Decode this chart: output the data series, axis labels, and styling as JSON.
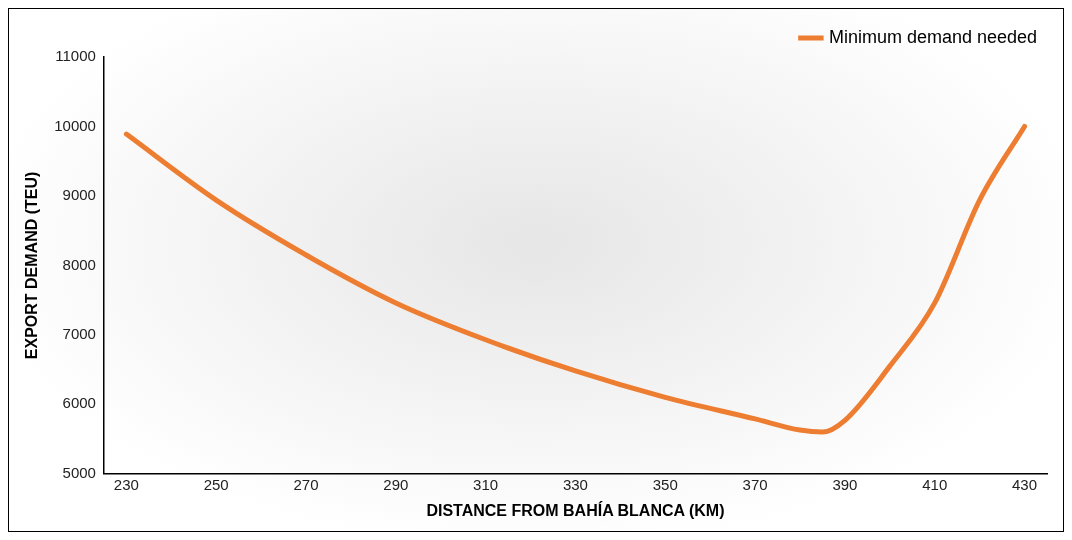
{
  "chart_data": {
    "type": "line",
    "xlabel": "DISTANCE FROM BAHÍA BLANCA (KM)",
    "ylabel": "EXPORT DEMAND (TEU)",
    "series": [
      {
        "name": "Minimum demand needed",
        "color": "#ed7d31",
        "x": [
          230,
          250,
          270,
          290,
          310,
          330,
          350,
          370,
          380,
          385,
          390,
          400,
          410,
          420,
          430
        ],
        "values": [
          9890,
          8940,
          8150,
          7460,
          6930,
          6480,
          6100,
          5790,
          5630,
          5600,
          5770,
          6550,
          7460,
          8940,
          10000
        ]
      }
    ],
    "xlim": [
      225,
      435
    ],
    "xticks": [
      230,
      250,
      270,
      290,
      310,
      330,
      350,
      370,
      390,
      410,
      430
    ],
    "ylim": [
      5000,
      11000
    ],
    "yticks": [
      5000,
      6000,
      7000,
      8000,
      9000,
      10000,
      11000
    ],
    "grid": false,
    "legend": "top right",
    "marker": "none",
    "line_style": "solid"
  }
}
